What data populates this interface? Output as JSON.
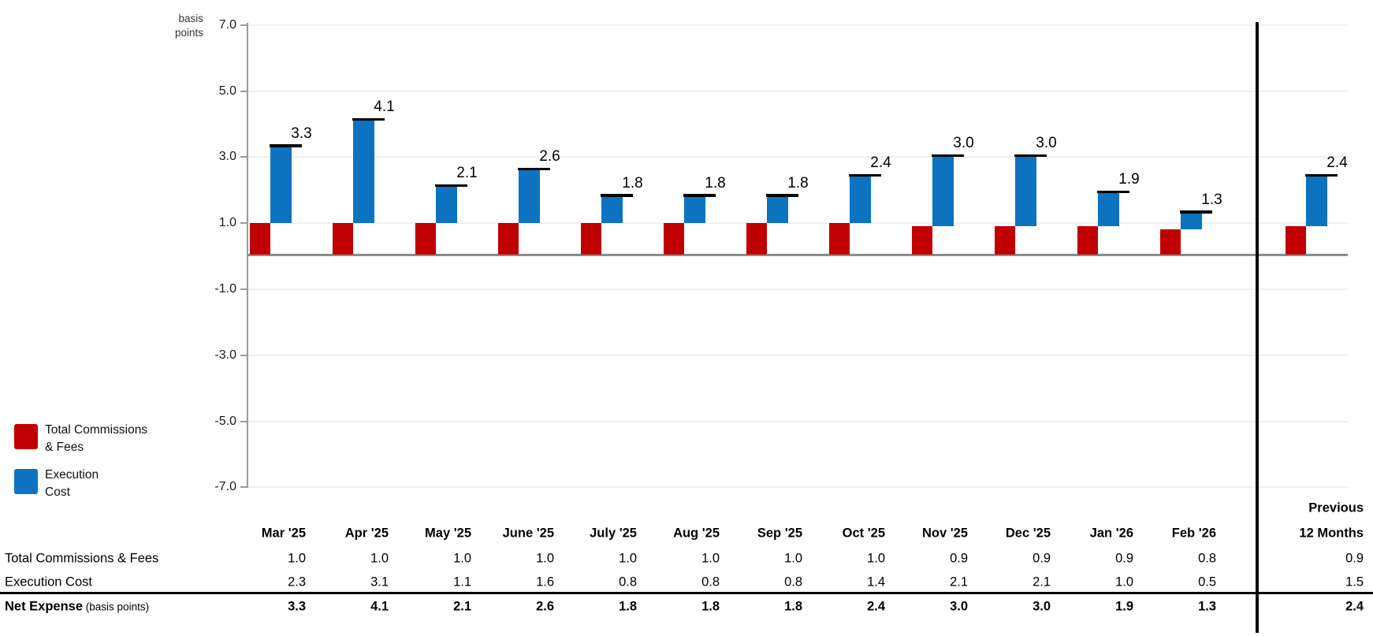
{
  "chart": {
    "unit_label_line1": "basis",
    "unit_label_line2": "points",
    "y_ticks": [
      7.0,
      5.0,
      3.0,
      1.0,
      -1.0,
      -3.0,
      -5.0,
      -7.0
    ]
  },
  "chart_data": {
    "type": "bar",
    "stacked": true,
    "title": "",
    "ylabel": "basis points",
    "ylim": [
      -7.0,
      7.0
    ],
    "grid": true,
    "legend_position": "bottom-left",
    "categories": [
      "Mar '25",
      "Apr '25",
      "May '25",
      "June '25",
      "July '25",
      "Aug '25",
      "Sep '25",
      "Oct '25",
      "Nov '25",
      "Dec '25",
      "Jan '26",
      "Feb '26",
      "Previous 12 Months"
    ],
    "series": [
      {
        "name": "Total Commissions & Fees",
        "color": "#c00000",
        "values": [
          1.0,
          1.0,
          1.0,
          1.0,
          1.0,
          1.0,
          1.0,
          1.0,
          0.9,
          0.9,
          0.9,
          0.8,
          0.9
        ]
      },
      {
        "name": "Execution Cost",
        "color": "#0d73c0",
        "values": [
          2.3,
          3.1,
          1.1,
          1.6,
          0.8,
          0.8,
          0.8,
          1.4,
          2.1,
          2.1,
          1.0,
          0.5,
          1.5
        ]
      }
    ],
    "totals": [
      3.3,
      4.1,
      2.1,
      2.6,
      1.8,
      1.8,
      1.8,
      2.4,
      3.0,
      3.0,
      1.9,
      1.3,
      2.4
    ]
  },
  "legend": {
    "items": [
      {
        "name": "total-commissions-fees",
        "color": "#c00000",
        "lines": [
          "Total Commissions",
          "& Fees"
        ]
      },
      {
        "name": "execution-cost",
        "color": "#0d73c0",
        "lines": [
          "Execution",
          "Cost"
        ]
      }
    ]
  },
  "table": {
    "month_columns": [
      "Mar '25",
      "Apr '25",
      "May '25",
      "June '25",
      "July '25",
      "Aug '25",
      "Sep '25",
      "Oct '25",
      "Nov '25",
      "Dec '25",
      "Jan '26",
      "Feb '26"
    ],
    "summary_column_line1": "Previous",
    "summary_column_line2": "12 Months",
    "rows": [
      {
        "label": "Total Commissions & Fees",
        "label_suffix": "",
        "bold": false,
        "values": [
          "1.0",
          "1.0",
          "1.0",
          "1.0",
          "1.0",
          "1.0",
          "1.0",
          "1.0",
          "0.9",
          "0.9",
          "0.9",
          "0.8"
        ],
        "summary": "0.9"
      },
      {
        "label": "Execution Cost",
        "label_suffix": "",
        "bold": false,
        "values": [
          "2.3",
          "3.1",
          "1.1",
          "1.6",
          "0.8",
          "0.8",
          "0.8",
          "1.4",
          "2.1",
          "2.1",
          "1.0",
          "0.5"
        ],
        "summary": "1.5"
      },
      {
        "label": "Net Expense",
        "label_suffix": " (basis points)",
        "bold": true,
        "values": [
          "3.3",
          "4.1",
          "2.1",
          "2.6",
          "1.8",
          "1.8",
          "1.8",
          "2.4",
          "3.0",
          "3.0",
          "1.9",
          "1.3"
        ],
        "summary": "2.4"
      }
    ]
  }
}
